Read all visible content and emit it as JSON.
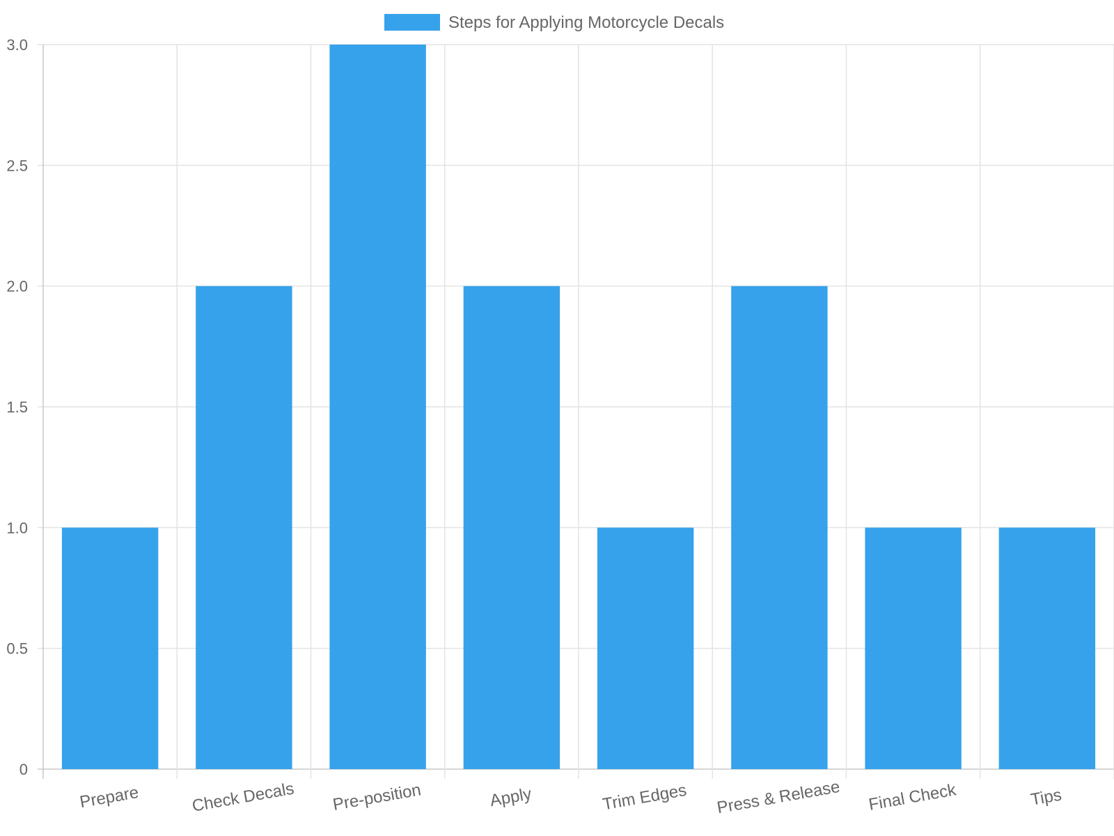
{
  "chart_data": {
    "type": "bar",
    "series": [
      {
        "name": "Steps for Applying Motorcycle Decals",
        "color": "#36A2EB",
        "values": [
          1,
          2,
          3,
          2,
          1,
          2,
          1,
          1
        ]
      }
    ],
    "categories": [
      "Prepare",
      "Check Decals",
      "Pre-position",
      "Apply",
      "Trim Edges",
      "Press & Release",
      "Final Check",
      "Tips"
    ],
    "ylim": [
      0,
      3
    ],
    "yticks": [
      "0",
      "0.5",
      "1.0",
      "1.5",
      "2.0",
      "2.5",
      "3.0"
    ],
    "grid": true,
    "legend_position": "top"
  }
}
